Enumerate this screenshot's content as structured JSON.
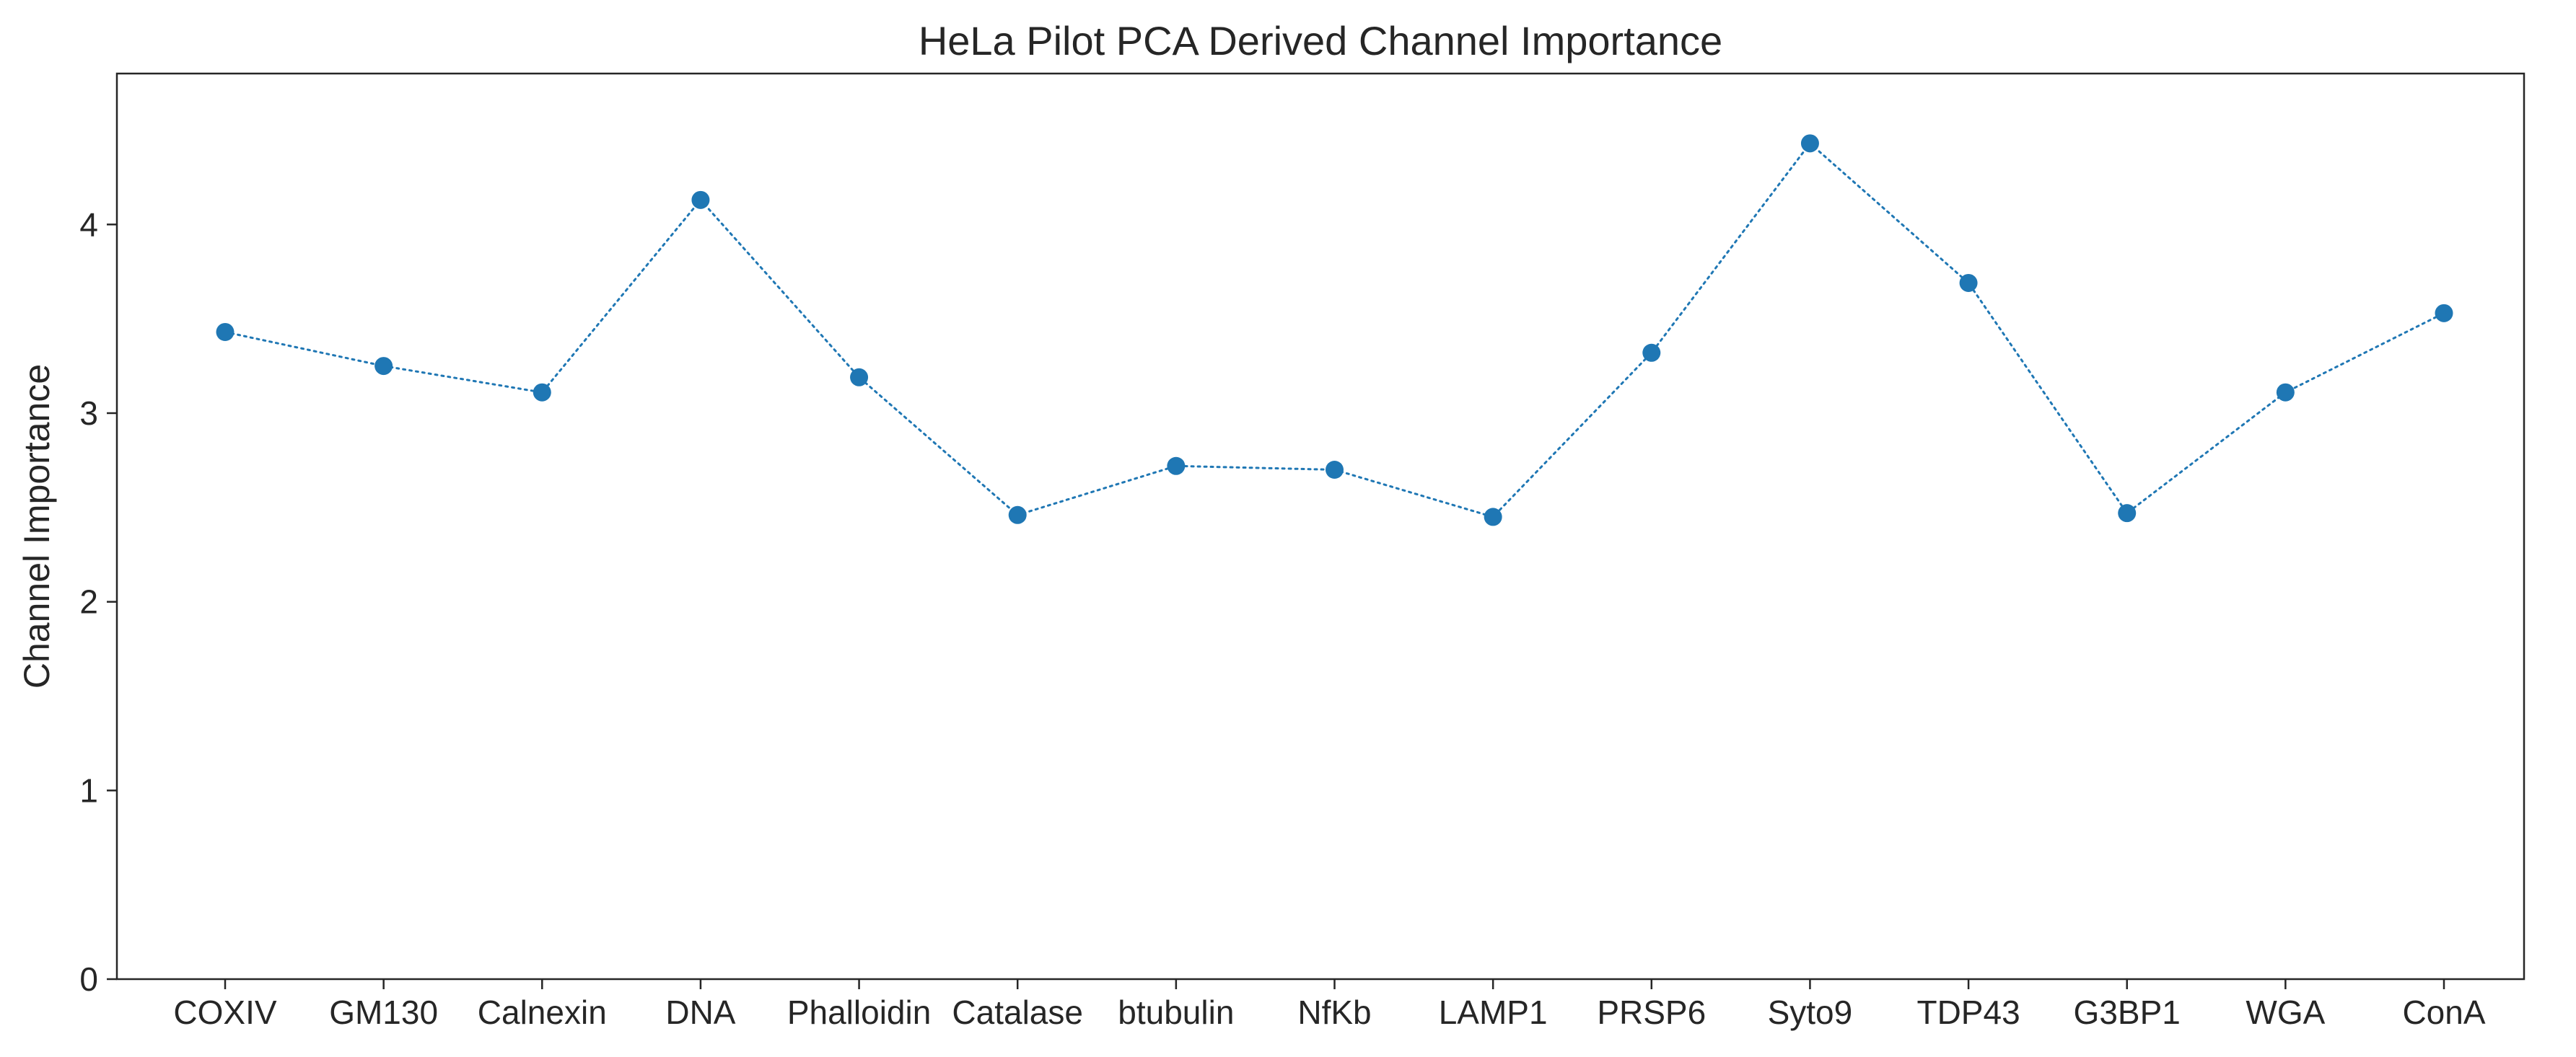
{
  "chart_data": {
    "type": "line",
    "title": "HeLa Pilot PCA Derived Channel Importance",
    "xlabel": "",
    "ylabel": "Channel Importance",
    "categories": [
      "COXIV",
      "GM130",
      "Calnexin",
      "DNA",
      "Phalloidin",
      "Catalase",
      "btubulin",
      "NfKb",
      "LAMP1",
      "PRSP6",
      "Syto9",
      "TDP43",
      "G3BP1",
      "WGA",
      "ConA"
    ],
    "series": [
      {
        "values": [
          3.43,
          3.25,
          3.11,
          4.13,
          3.19,
          2.46,
          2.72,
          2.7,
          2.45,
          3.32,
          4.43,
          3.69,
          2.47,
          3.11,
          3.53
        ]
      }
    ],
    "ylim": [
      0,
      4.8
    ],
    "yticks": [
      0,
      1,
      2,
      3,
      4
    ],
    "grid": false,
    "line_style": "dotted",
    "marker": "circle",
    "color": "#1f77b4"
  }
}
